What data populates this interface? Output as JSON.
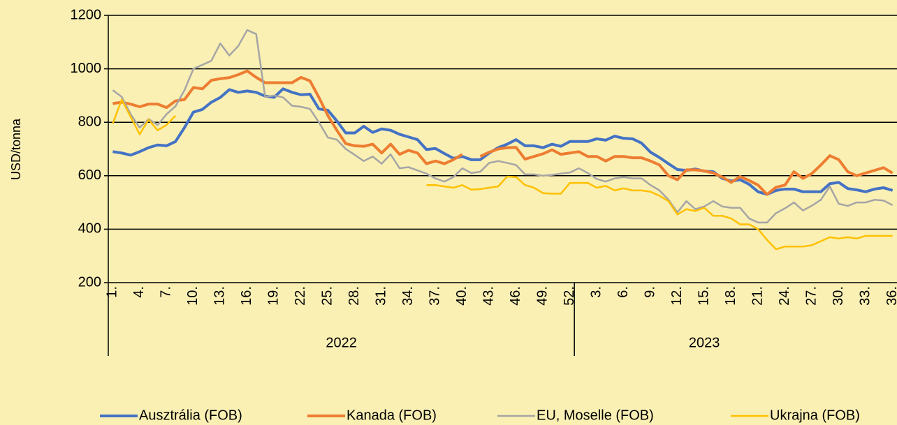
{
  "chart_data": {
    "type": "line",
    "y_label": "USD/tonna",
    "categories": [
      "1.",
      null,
      null,
      "4.",
      null,
      null,
      "7.",
      null,
      null,
      "10.",
      null,
      null,
      "13.",
      null,
      null,
      "16.",
      null,
      null,
      "19.",
      null,
      null,
      "22.",
      null,
      null,
      "25.",
      null,
      null,
      "28.",
      null,
      null,
      "31.",
      null,
      null,
      "34.",
      null,
      null,
      "37.",
      null,
      null,
      "40.",
      null,
      null,
      "43.",
      null,
      null,
      "46.",
      null,
      null,
      "49.",
      null,
      null,
      "52.",
      null,
      null,
      "3.",
      null,
      null,
      "6.",
      null,
      null,
      "9.",
      null,
      null,
      "12.",
      null,
      null,
      "15.",
      null,
      null,
      "18.",
      null,
      null,
      "21.",
      null,
      null,
      "24.",
      null,
      null,
      "27.",
      null,
      null,
      "30.",
      null,
      null,
      "33.",
      null,
      null,
      "36."
    ],
    "groups": [
      {
        "label": "2022",
        "count": 52
      },
      {
        "label": "2023",
        "count": 36
      }
    ],
    "ylim": [
      200,
      1200
    ],
    "yticks": [
      200,
      400,
      600,
      800,
      1000,
      1200
    ],
    "grid": true,
    "legend": "bottom",
    "series": [
      {
        "name": "Ausztrália (FOB)",
        "color": "#4472c4",
        "width": 4,
        "values": [
          690,
          685,
          677,
          690,
          705,
          715,
          712,
          728,
          780,
          838,
          848,
          875,
          893,
          922,
          912,
          917,
          912,
          898,
          893,
          925,
          912,
          903,
          905,
          850,
          845,
          805,
          760,
          760,
          785,
          762,
          775,
          770,
          755,
          745,
          735,
          698,
          702,
          683,
          665,
          672,
          660,
          660,
          685,
          705,
          718,
          735,
          712,
          712,
          705,
          718,
          710,
          728,
          728,
          728,
          738,
          733,
          748,
          740,
          738,
          722,
          688,
          668,
          645,
          623,
          620,
          625,
          617,
          615,
          590,
          580,
          585,
          568,
          540,
          530,
          545,
          550,
          550,
          540,
          540,
          540,
          570,
          575,
          552,
          547,
          540,
          550,
          555,
          545
        ]
      },
      {
        "name": "Kanada (FOB)",
        "color": "#ed7d31",
        "width": 4,
        "values": [
          870,
          875,
          868,
          858,
          868,
          868,
          855,
          880,
          885,
          930,
          925,
          957,
          963,
          967,
          978,
          992,
          968,
          948,
          948,
          948,
          948,
          968,
          955,
          893,
          825,
          770,
          720,
          712,
          710,
          718,
          685,
          718,
          680,
          695,
          685,
          645,
          655,
          645,
          660,
          680,
          null,
          672,
          688,
          700,
          705,
          706,
          662,
          672,
          682,
          697,
          680,
          685,
          690,
          672,
          672,
          655,
          672,
          672,
          667,
          667,
          655,
          640,
          600,
          585,
          622,
          622,
          618,
          610,
          595,
          575,
          597,
          582,
          565,
          530,
          557,
          565,
          615,
          590,
          608,
          640,
          675,
          660,
          615,
          600,
          610,
          620,
          630,
          610
        ]
      },
      {
        "name": "EU, Moselle (FOB)",
        "color": "#a5a5a5",
        "width": 2.5,
        "values": [
          920,
          895,
          830,
          780,
          812,
          790,
          830,
          860,
          920,
          1000,
          1015,
          1030,
          1095,
          1050,
          1085,
          1145,
          1130,
          895,
          900,
          893,
          862,
          858,
          850,
          800,
          743,
          735,
          700,
          678,
          655,
          672,
          645,
          680,
          628,
          632,
          620,
          608,
          590,
          578,
          595,
          628,
          610,
          615,
          648,
          655,
          648,
          640,
          605,
          605,
          600,
          603,
          608,
          612,
          628,
          610,
          588,
          578,
          590,
          595,
          590,
          590,
          565,
          545,
          510,
          463,
          505,
          475,
          485,
          505,
          485,
          480,
          480,
          440,
          425,
          425,
          460,
          478,
          500,
          470,
          488,
          510,
          560,
          495,
          487,
          500,
          500,
          510,
          507,
          490
        ]
      },
      {
        "name": "Ukrajna (FOB)",
        "color": "#ffc000",
        "width": 2.5,
        "values": [
          795,
          885,
          820,
          755,
          810,
          770,
          790,
          825,
          null,
          null,
          null,
          null,
          null,
          null,
          null,
          null,
          null,
          null,
          null,
          null,
          null,
          null,
          null,
          null,
          null,
          null,
          null,
          null,
          null,
          null,
          null,
          null,
          null,
          null,
          null,
          565,
          565,
          560,
          555,
          565,
          548,
          550,
          555,
          560,
          597,
          595,
          565,
          555,
          535,
          533,
          533,
          573,
          573,
          573,
          555,
          562,
          545,
          553,
          545,
          545,
          540,
          525,
          505,
          455,
          475,
          468,
          480,
          450,
          450,
          440,
          418,
          418,
          400,
          360,
          325,
          335,
          335,
          335,
          340,
          355,
          370,
          365,
          370,
          365,
          375,
          375,
          375,
          375
        ]
      }
    ]
  }
}
